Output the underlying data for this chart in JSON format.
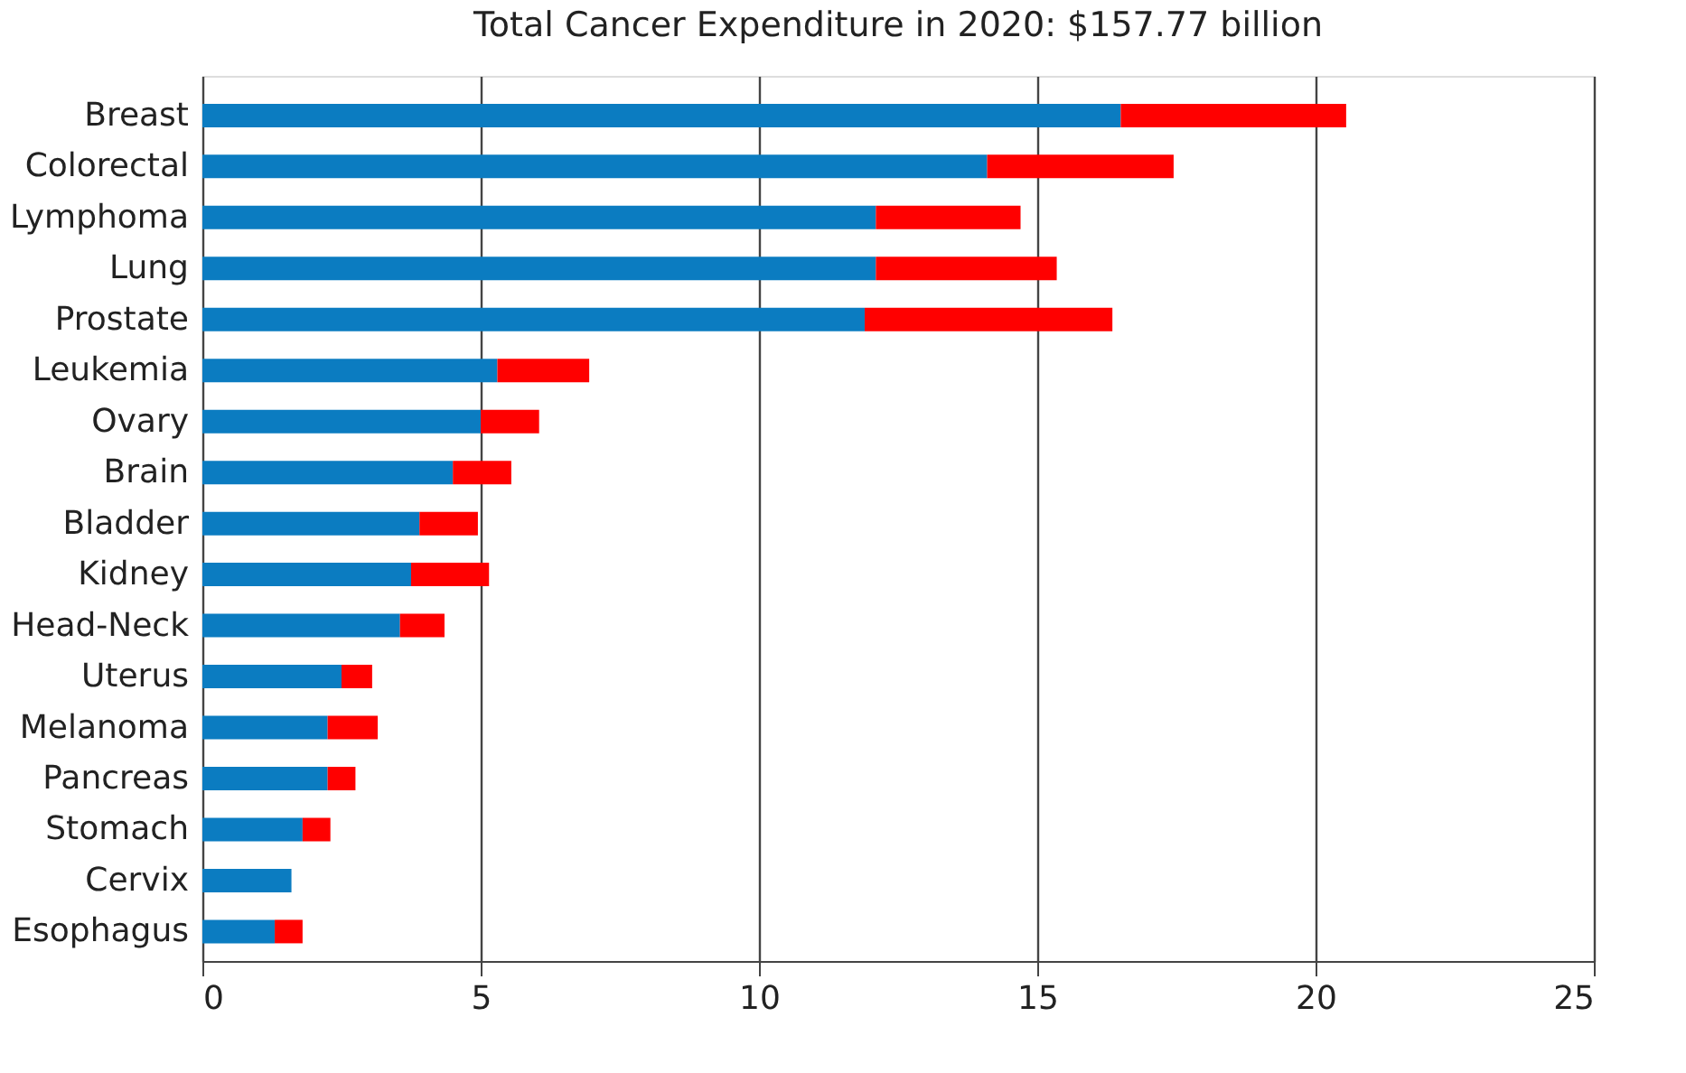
{
  "chart_data": {
    "type": "bar",
    "orientation": "horizontal",
    "stacked": true,
    "title": "Total Cancer Expenditure in 2020: $157.77 billion",
    "categories": [
      "Breast",
      "Colorectal",
      "Lymphoma",
      "Lung",
      "Prostate",
      "Leukemia",
      "Ovary",
      "Brain",
      "Bladder",
      "Kidney",
      "Head-Neck",
      "Uterus",
      "Melanoma",
      "Pancreas",
      "Stomach",
      "Cervix",
      "Esophagus"
    ],
    "series": [
      {
        "color": "#0b7cc1",
        "values": [
          16.5,
          14.1,
          12.1,
          12.1,
          11.9,
          5.3,
          5.0,
          4.5,
          3.9,
          3.75,
          3.55,
          2.5,
          2.25,
          2.25,
          1.8,
          1.6,
          1.3
        ]
      },
      {
        "color": "#ff0000",
        "values": [
          4.05,
          3.35,
          2.6,
          3.25,
          4.45,
          1.65,
          1.05,
          1.05,
          1.05,
          1.4,
          0.8,
          0.55,
          0.9,
          0.5,
          0.5,
          null,
          0.5
        ]
      }
    ],
    "xlim": [
      0,
      25
    ],
    "xticks": [
      0,
      5,
      10,
      15,
      20,
      25
    ],
    "grid": "x",
    "legend": false
  }
}
